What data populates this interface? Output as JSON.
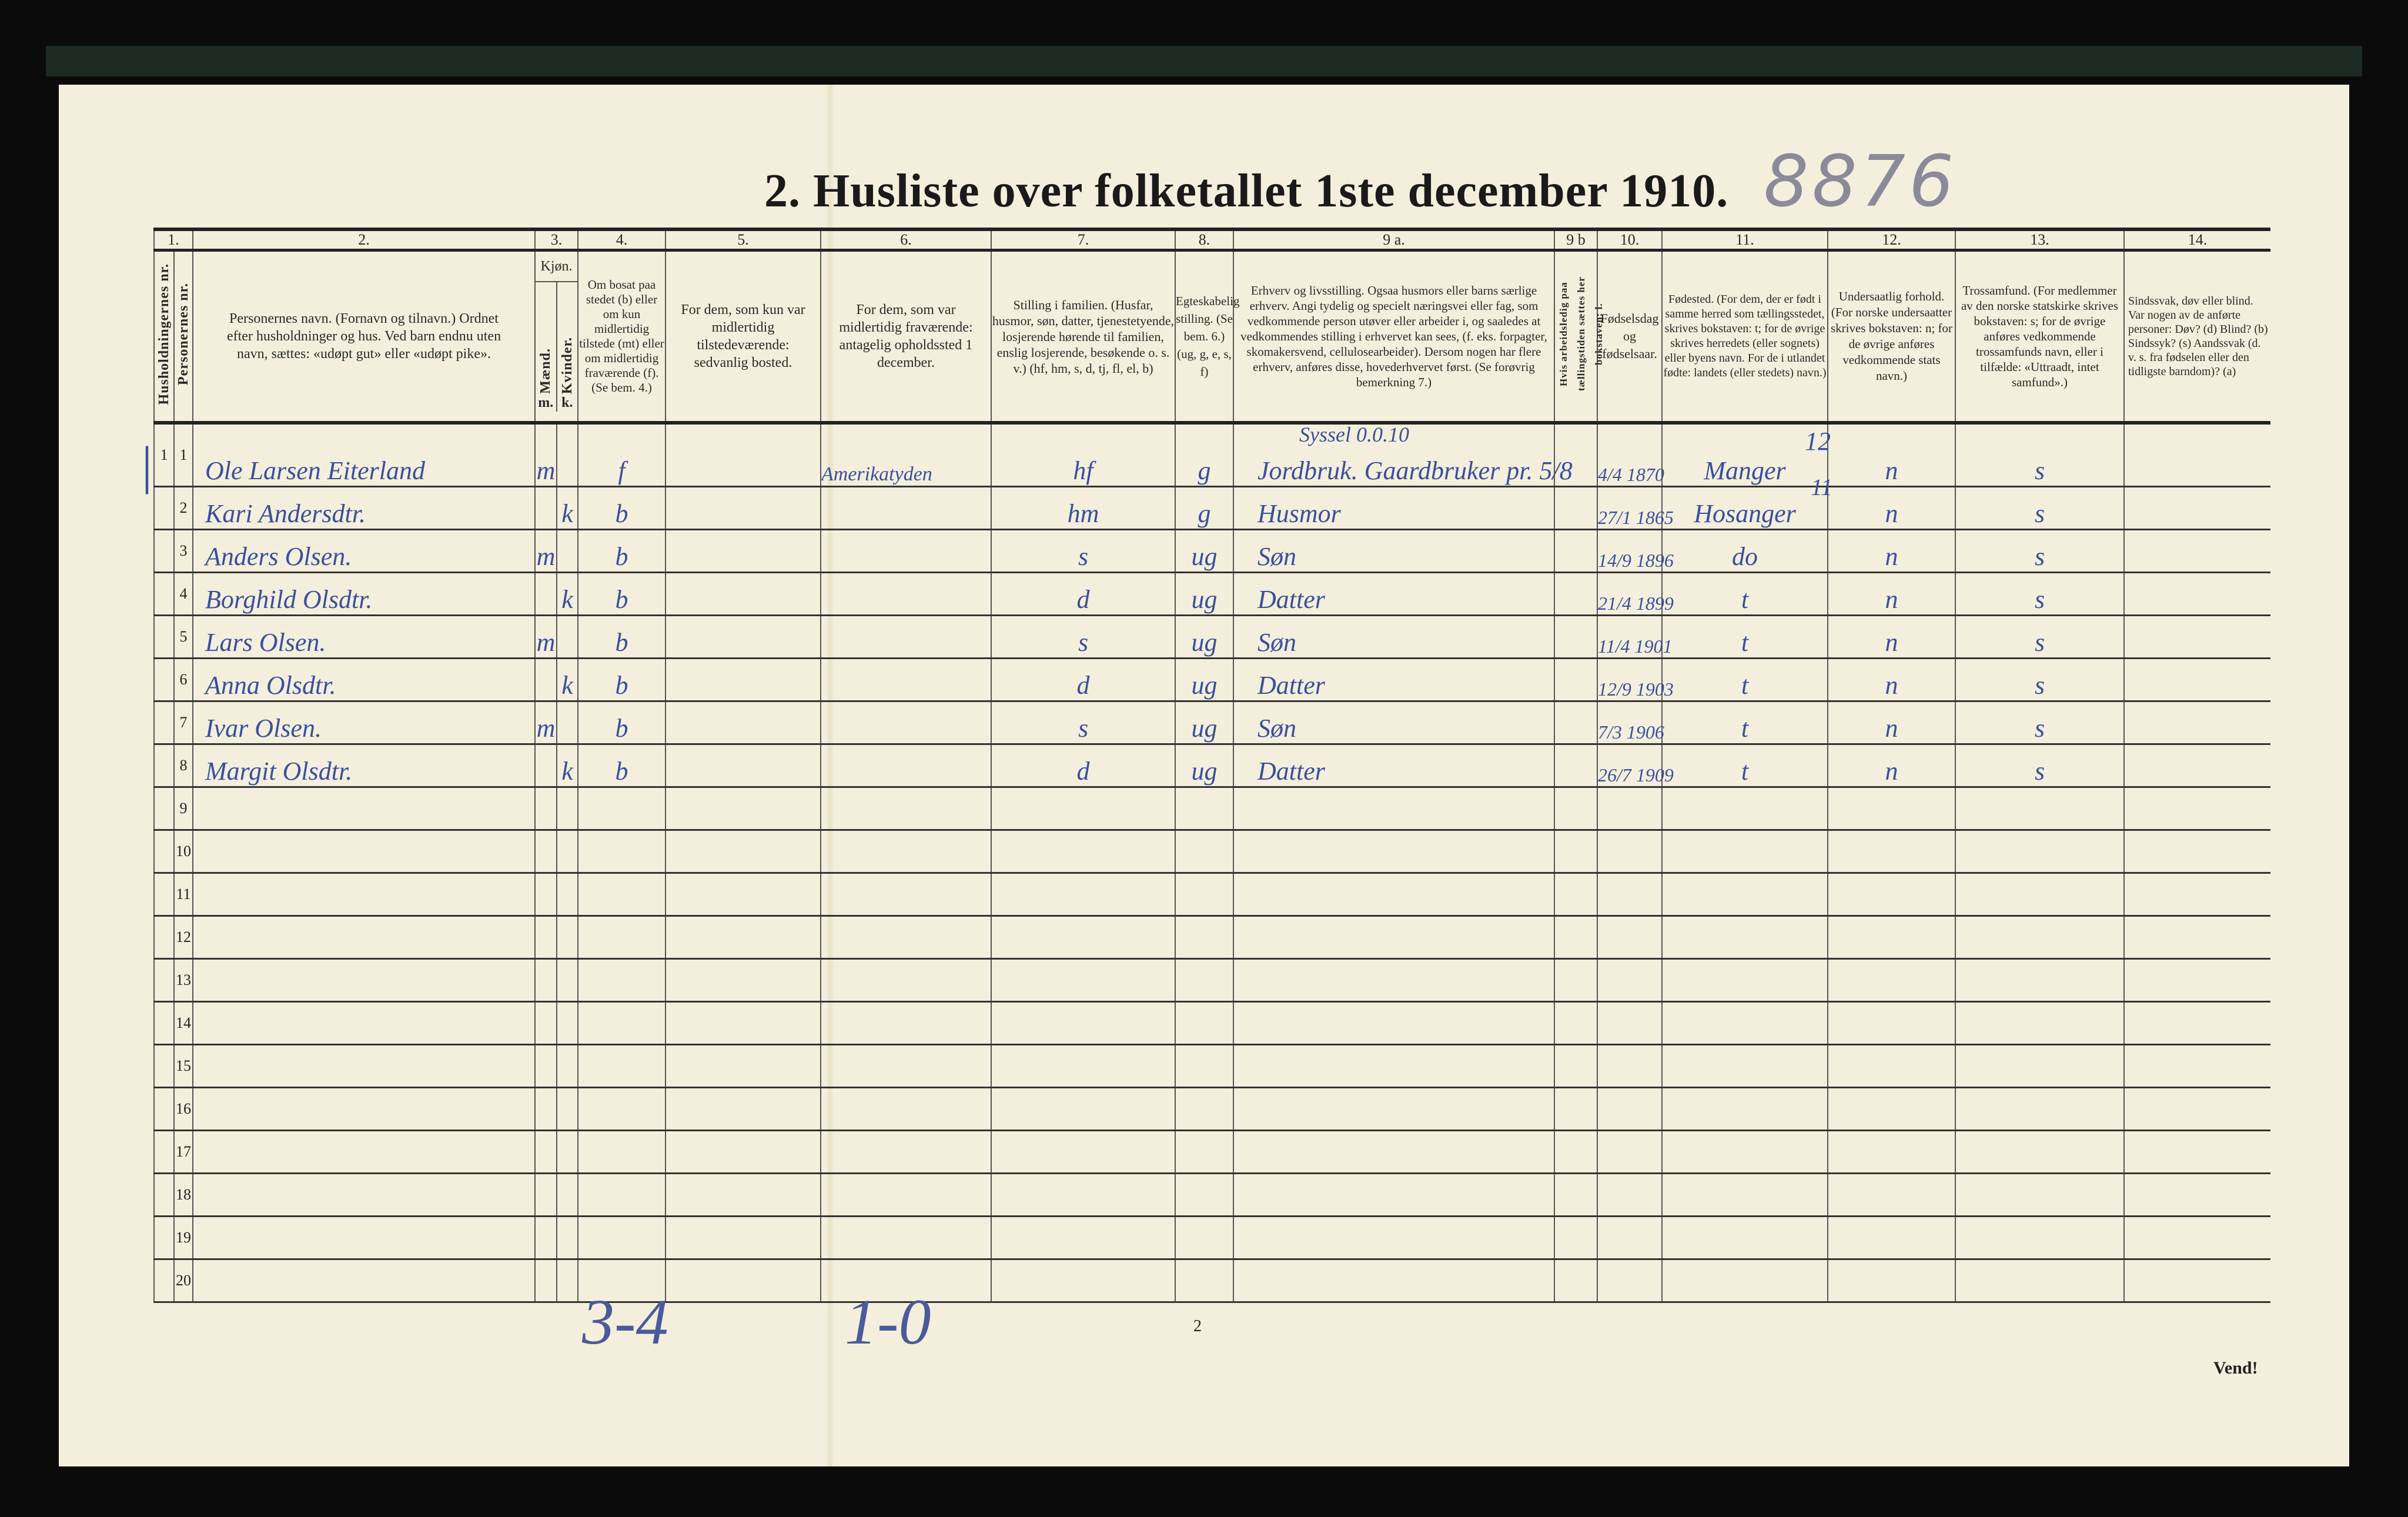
{
  "title": "2.  Husliste over folketallet 1ste december 1910.",
  "archive_number": "8876",
  "columns": {
    "n1": "1.",
    "n2": "2.",
    "n3": "3.",
    "n4": "4.",
    "n5": "5.",
    "n6": "6.",
    "n7": "7.",
    "n8": "8.",
    "n9a": "9 a.",
    "n9b": "9 b",
    "n10": "10.",
    "n11": "11.",
    "n12": "12.",
    "n13": "13.",
    "n14": "14.",
    "h_household": "Husholdningernes nr.",
    "h_person": "Personernes nr.",
    "h_name": "Personernes navn. (Fornavn og tilnavn.) Ordnet efter husholdninger og hus. Ved barn endnu uten navn, sættes: «udøpt gut» eller «udøpt pike».",
    "h_sex": "Kjøn.",
    "h_men": "Mænd.",
    "h_women": "Kvinder.",
    "h_m": "m.",
    "h_k": "k.",
    "h_col4": "Om bosat paa stedet (b) eller om kun midlertidig tilstede (mt) eller om midlertidig fraværende (f). (Se bem. 4.)",
    "h_col5": "For dem, som kun var midlertidig tilstedeværende: sedvanlig bosted.",
    "h_col6": "For dem, som var midlertidig fraværende: antagelig opholdssted 1 december.",
    "h_col7": "Stilling i familien. (Husfar, husmor, søn, datter, tjenestetyende, losjerende hørende til familien, enslig losjerende, besøkende o. s. v.) (hf, hm, s, d, tj, fl, el, b)",
    "h_col8": "Egteskabelig stilling. (Se bem. 6.) (ug, g, e, s, f)",
    "h_col9a": "Erhverv og livsstilling. Ogsaa husmors eller barns særlige erhverv. Angi tydelig og specielt næringsvei eller fag, som vedkommende person utøver eller arbeider i, og saaledes at vedkommendes stilling i erhvervet kan sees, (f. eks. forpagter, skomakersvend, cellulosearbeider). Dersom nogen har flere erhverv, anføres disse, hovederhvervet først. (Se forøvrig bemerkning 7.)",
    "h_col9b": "Hvis arbeidsledig paa tællingstiden sættes her bokstaven: l.",
    "h_col10": "Fødselsdag og fødselsaar.",
    "h_col11": "Fødested. (For dem, der er født i samme herred som tællingsstedet, skrives bokstaven: t; for de øvrige skrives herredets (eller sognets) eller byens navn. For de i utlandet fødte: landets (eller stedets) navn.)",
    "h_col12": "Undersaatlig forhold. (For norske undersaatter skrives bokstaven: n; for de øvrige anføres vedkommende stats navn.)",
    "h_col13": "Trossamfund. (For medlemmer av den norske statskirke skrives bokstaven: s; for de øvrige anføres vedkommende trossamfunds navn, eller i tilfælde: «Uttraadt, intet samfund».)",
    "h_col14": "Sindssvak, døv eller blind. Var nogen av de anførte personer: Døv? (d) Blind? (b) Sindssyk? (s) Aandssvak (d. v. s. fra fødselen eller den tidligste barndom)? (a)"
  },
  "rows": [
    {
      "hh": "1",
      "nr": "1",
      "name": "Ole Larsen Eiterland",
      "m": "m",
      "k": "",
      "col4": "f",
      "col5": "",
      "col6": "Amerikatyden",
      "col7": "hf",
      "col8": "g",
      "col9a": "Jordbruk. Gaardbruker pr. 5/8",
      "col9b": "",
      "col10": "4/4 1870",
      "col11": "Manger",
      "col12": "n",
      "col13": "s",
      "col14": ""
    },
    {
      "hh": "",
      "nr": "2",
      "name": "Kari Andersdtr.",
      "m": "",
      "k": "k",
      "col4": "b",
      "col5": "",
      "col6": "",
      "col7": "hm",
      "col8": "g",
      "col9a": "Husmor",
      "col9b": "",
      "col10": "27/1 1865",
      "col11": "Hosanger",
      "col12": "n",
      "col13": "s",
      "col14": ""
    },
    {
      "hh": "",
      "nr": "3",
      "name": "Anders Olsen.",
      "m": "m",
      "k": "",
      "col4": "b",
      "col5": "",
      "col6": "",
      "col7": "s",
      "col8": "ug",
      "col9a": "Søn",
      "col9b": "",
      "col10": "14/9 1896",
      "col11": "do",
      "col12": "n",
      "col13": "s",
      "col14": ""
    },
    {
      "hh": "",
      "nr": "4",
      "name": "Borghild Olsdtr.",
      "m": "",
      "k": "k",
      "col4": "b",
      "col5": "",
      "col6": "",
      "col7": "d",
      "col8": "ug",
      "col9a": "Datter",
      "col9b": "",
      "col10": "21/4 1899",
      "col11": "t",
      "col12": "n",
      "col13": "s",
      "col14": ""
    },
    {
      "hh": "",
      "nr": "5",
      "name": "Lars Olsen.",
      "m": "m",
      "k": "",
      "col4": "b",
      "col5": "",
      "col6": "",
      "col7": "s",
      "col8": "ug",
      "col9a": "Søn",
      "col9b": "",
      "col10": "11/4 1901",
      "col11": "t",
      "col12": "n",
      "col13": "s",
      "col14": ""
    },
    {
      "hh": "",
      "nr": "6",
      "name": "Anna Olsdtr.",
      "m": "",
      "k": "k",
      "col4": "b",
      "col5": "",
      "col6": "",
      "col7": "d",
      "col8": "ug",
      "col9a": "Datter",
      "col9b": "",
      "col10": "12/9 1903",
      "col11": "t",
      "col12": "n",
      "col13": "s",
      "col14": ""
    },
    {
      "hh": "",
      "nr": "7",
      "name": "Ivar Olsen.",
      "m": "m",
      "k": "",
      "col4": "b",
      "col5": "",
      "col6": "",
      "col7": "s",
      "col8": "ug",
      "col9a": "Søn",
      "col9b": "",
      "col10": "7/3 1906",
      "col11": "t",
      "col12": "n",
      "col13": "s",
      "col14": ""
    },
    {
      "hh": "",
      "nr": "8",
      "name": "Margit Olsdtr.",
      "m": "",
      "k": "k",
      "col4": "b",
      "col5": "",
      "col6": "",
      "col7": "d",
      "col8": "ug",
      "col9a": "Datter",
      "col9b": "",
      "col10": "26/7 1909",
      "col11": "t",
      "col12": "n",
      "col13": "s",
      "col14": ""
    },
    {
      "nr": "9"
    },
    {
      "nr": "10"
    },
    {
      "nr": "11"
    },
    {
      "nr": "12"
    },
    {
      "nr": "13"
    },
    {
      "nr": "14"
    },
    {
      "nr": "15"
    },
    {
      "nr": "16"
    },
    {
      "nr": "17"
    },
    {
      "nr": "18"
    },
    {
      "nr": "19"
    },
    {
      "nr": "20"
    }
  ],
  "annotations": {
    "occupation_note": "Syssel 0.0.10",
    "birthplace_code_1": "12",
    "birthplace_code_2": "11",
    "tally_men": "3-4",
    "tally_other": "1-0",
    "page_number": "2",
    "turn_over": "Vend!"
  },
  "colors": {
    "ink": "#3b4f9e",
    "paper": "#f3efdc",
    "print": "#222222"
  }
}
